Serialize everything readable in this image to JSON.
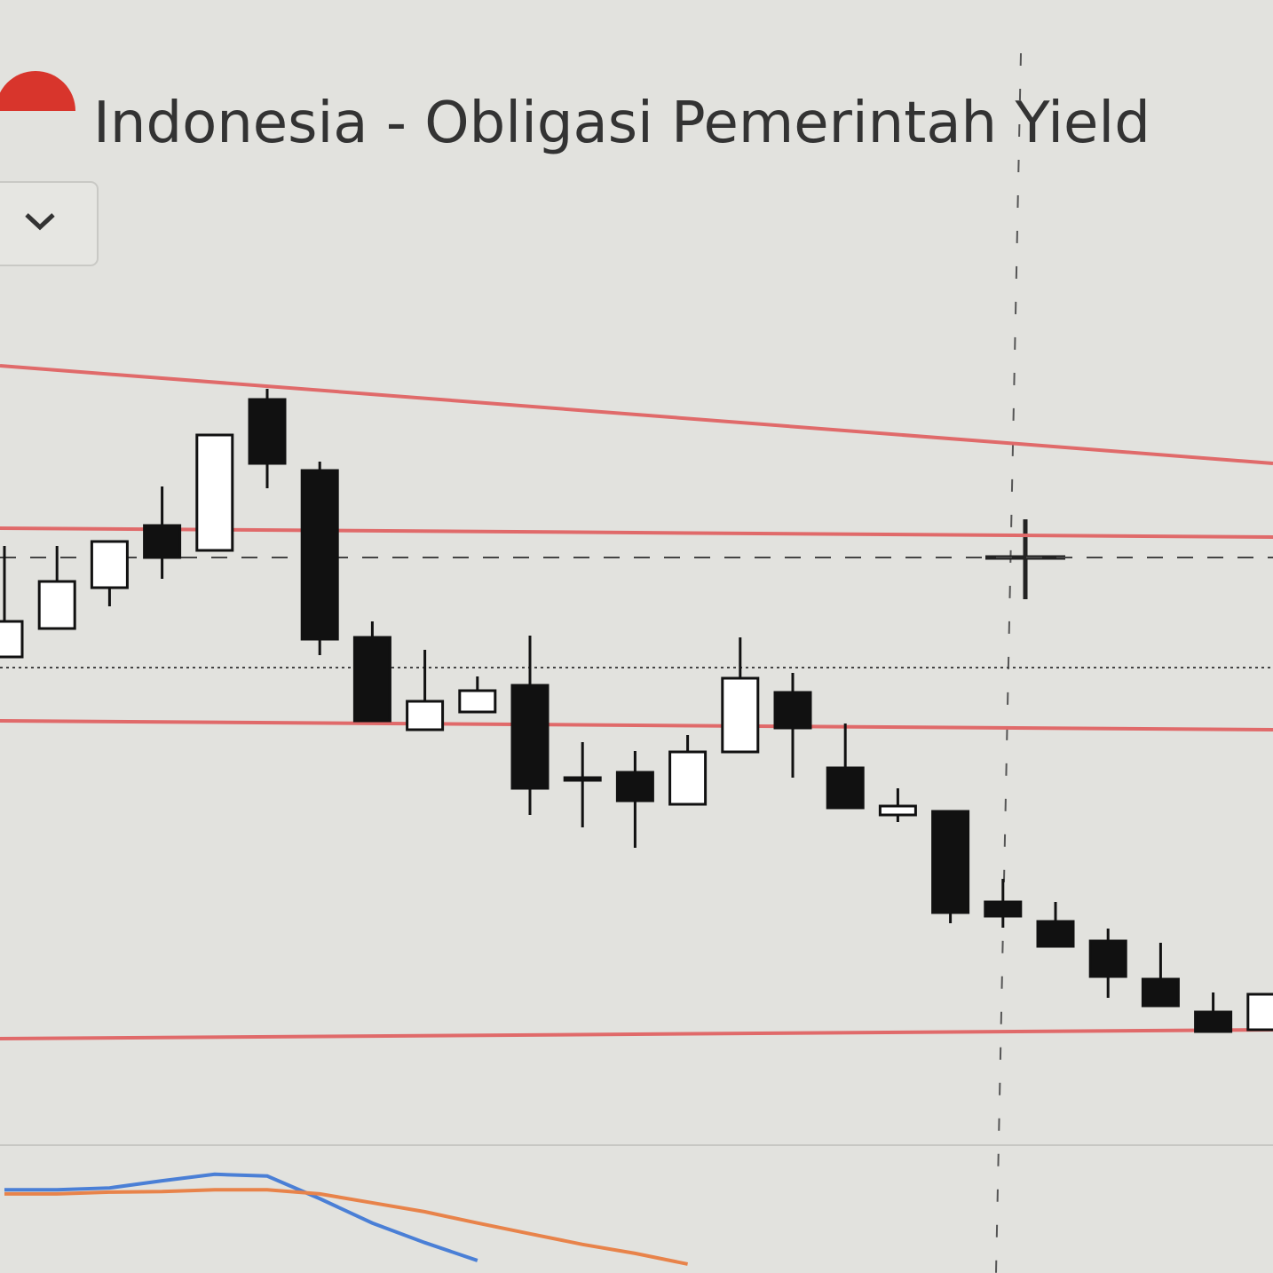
{
  "chart_data": {
    "type": "candlestick",
    "title": "Indonesia - Obligasi Pemerintah Yield",
    "ylim": [
      0,
      100
    ],
    "up_color": "#ffffff",
    "down_color": "#111111",
    "ohlc": {
      "open": [
        46.0,
        49.2,
        53.8,
        60.8,
        58.0,
        75.0,
        67.0,
        48.2,
        37.8,
        39.8,
        42.8,
        32.4,
        33.0,
        29.4,
        35.3,
        42.0,
        33.5,
        28.2,
        28.6,
        18.4,
        16.2,
        14.0,
        9.7,
        6.0,
        4.0
      ],
      "high": [
        58.5,
        58.5,
        59.0,
        65.2,
        71.0,
        76.2,
        68.0,
        50.0,
        46.8,
        43.8,
        48.4,
        36.4,
        35.4,
        37.2,
        48.2,
        44.2,
        38.5,
        31.2,
        28.6,
        21.0,
        18.4,
        15.4,
        13.8,
        8.2,
        8.0
      ],
      "low": [
        46.0,
        49.2,
        51.7,
        54.8,
        58.0,
        65.0,
        46.2,
        38.8,
        37.8,
        39.8,
        28.2,
        26.8,
        24.5,
        29.4,
        35.3,
        32.4,
        29.0,
        27.4,
        16.0,
        15.5,
        13.4,
        7.6,
        6.7,
        3.8,
        4.0
      ],
      "close": [
        50.0,
        54.5,
        59.0,
        57.2,
        71.0,
        67.8,
        48.0,
        38.8,
        41.0,
        42.2,
        31.2,
        32.4,
        29.8,
        35.3,
        43.6,
        38.0,
        29.0,
        29.2,
        17.2,
        16.8,
        13.4,
        10.0,
        6.7,
        3.8,
        8.0
      ]
    },
    "levels": [
      {
        "start": 78.8,
        "end": 67.8
      },
      {
        "start": 60.5,
        "end": 59.5
      },
      {
        "start": 38.8,
        "end": 37.8
      },
      {
        "start": 3.0,
        "end": 4.0
      }
    ],
    "level_color": "#e06a6a",
    "crosshair": 57.2,
    "price_line": 44.8,
    "oscillator": {
      "ylim": [
        0,
        20
      ],
      "series": [
        {
          "color": "#4a7fd6",
          "values": [
            14.0,
            14.0,
            14.3,
            15.5,
            16.6,
            16.3,
            12.5,
            8.4,
            5.1,
            2.1,
            null,
            null,
            null,
            null,
            null,
            null,
            null,
            null,
            null,
            null,
            null,
            null,
            null,
            null,
            null
          ]
        },
        {
          "color": "#e8834a",
          "values": [
            13.3,
            13.3,
            13.6,
            13.7,
            14.0,
            14.0,
            13.3,
            11.8,
            10.3,
            8.4,
            6.6,
            4.8,
            3.3,
            1.5,
            null,
            null,
            null,
            null,
            null,
            null,
            null,
            null,
            null,
            null,
            null
          ]
        }
      ]
    }
  }
}
